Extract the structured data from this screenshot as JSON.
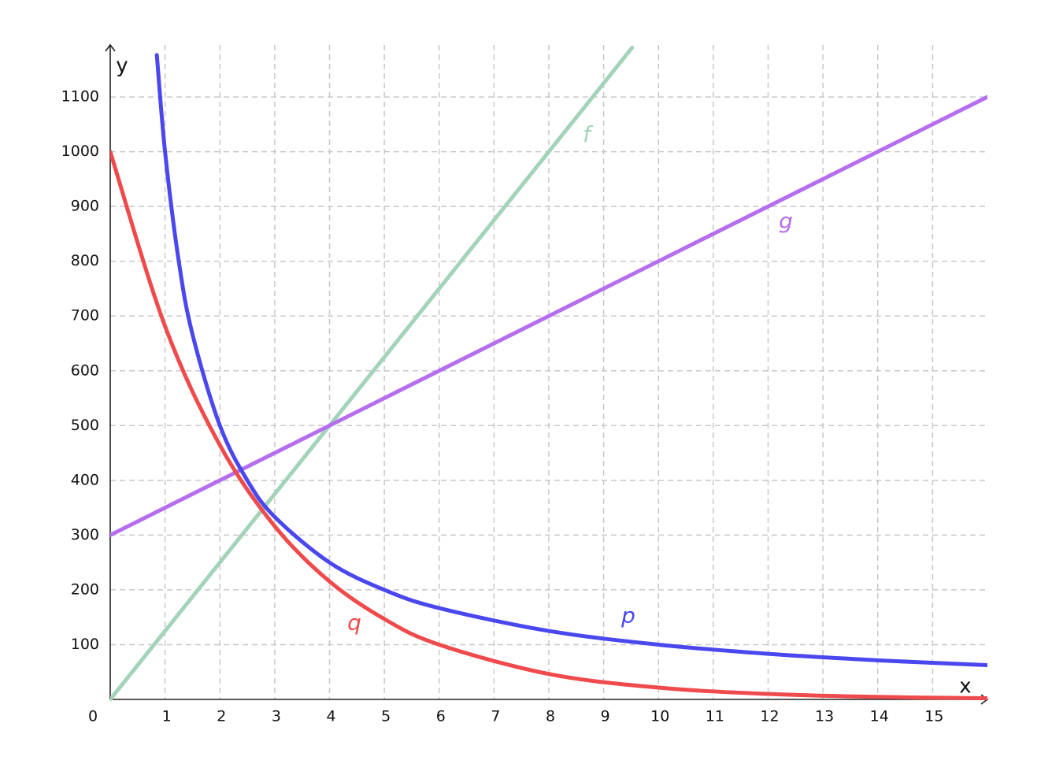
{
  "chart_data": {
    "type": "line",
    "x_label": "x",
    "y_label": "y",
    "xlim": [
      0,
      16
    ],
    "ylim": [
      0,
      1195
    ],
    "xticks": [
      0,
      1,
      2,
      3,
      4,
      5,
      6,
      7,
      8,
      9,
      10,
      11,
      12,
      13,
      14,
      15
    ],
    "yticks": [
      100,
      200,
      300,
      400,
      500,
      600,
      700,
      800,
      900,
      1000,
      1100
    ],
    "grid": true,
    "series": [
      {
        "name": "f",
        "color": "#a3d4b9",
        "x": [
          0,
          4,
          9.52
        ],
        "values": [
          0,
          500,
          1190
        ]
      },
      {
        "name": "g",
        "color": "#b56ef0",
        "x": [
          0,
          4,
          16
        ],
        "values": [
          300,
          500,
          1100
        ]
      },
      {
        "name": "p",
        "color": "#4a47ee",
        "x": [
          0.85,
          1,
          1.25,
          1.5,
          2,
          2.5,
          3,
          4,
          5,
          6,
          8,
          10,
          12,
          14,
          16
        ],
        "values": [
          1176.5,
          1000,
          800,
          666.7,
          500,
          400,
          333.3,
          250,
          200,
          166.7,
          125,
          100,
          83.3,
          71.4,
          62.5
        ]
      },
      {
        "name": "q",
        "color": "#ef4a4c",
        "x": [
          0,
          1,
          2,
          3,
          4,
          5,
          6,
          8,
          10,
          12,
          14,
          16
        ],
        "values": [
          1000,
          681.3,
          464.2,
          316.2,
          215.4,
          146.8,
          100,
          46.4,
          21.5,
          10,
          4.6,
          2.2
        ]
      }
    ]
  }
}
